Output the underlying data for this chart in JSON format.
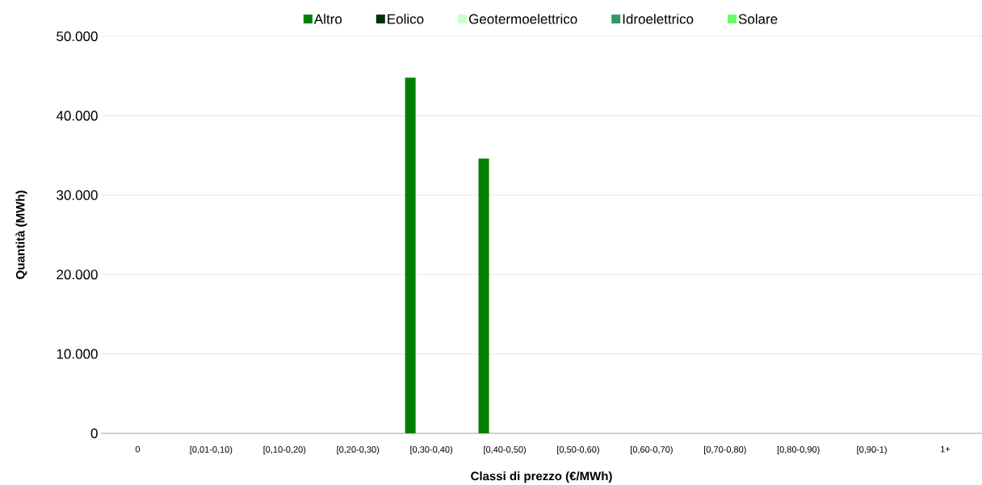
{
  "chart_data": {
    "type": "bar",
    "xlabel": "Classi di prezzo (€/MWh)",
    "ylabel": "Quantità (MWh)",
    "categories": [
      "0",
      "[0,01-0,10)",
      "[0,10-0,20)",
      "[0,20-0,30)",
      "[0,30-0,40)",
      "[0,40-0,50)",
      "[0,50-0,60)",
      "[0,60-0,70)",
      "[0,70-0,80)",
      "[0,80-0,90)",
      "[0,90-1)",
      "1+"
    ],
    "series": [
      {
        "name": "Altro",
        "color": "#008000",
        "values": [
          0,
          0,
          0,
          0,
          44800,
          34600,
          0,
          0,
          0,
          0,
          0,
          0
        ]
      },
      {
        "name": "Eolico",
        "color": "#003300",
        "values": [
          0,
          0,
          0,
          0,
          0,
          0,
          0,
          0,
          0,
          0,
          0,
          0
        ]
      },
      {
        "name": "Geotermoelettrico",
        "color": "#ccffcc",
        "values": [
          0,
          0,
          0,
          0,
          0,
          0,
          0,
          0,
          0,
          0,
          0,
          0
        ]
      },
      {
        "name": "Idroelettrico",
        "color": "#339966",
        "values": [
          0,
          0,
          0,
          0,
          0,
          0,
          0,
          0,
          0,
          0,
          0,
          0
        ]
      },
      {
        "name": "Solare",
        "color": "#66ff66",
        "values": [
          0,
          0,
          0,
          0,
          0,
          0,
          0,
          0,
          0,
          0,
          0,
          0
        ]
      }
    ],
    "ylim": [
      0,
      50000
    ],
    "yticks": [
      0,
      {
        "value": 10000,
        "label": "10.000"
      },
      {
        "value": 20000,
        "label": "20.000"
      },
      {
        "value": 30000,
        "label": "30.000"
      },
      {
        "value": 40000,
        "label": "40.000"
      },
      {
        "value": 50000,
        "label": "50.000"
      }
    ],
    "grid": "y",
    "legend": "top"
  }
}
